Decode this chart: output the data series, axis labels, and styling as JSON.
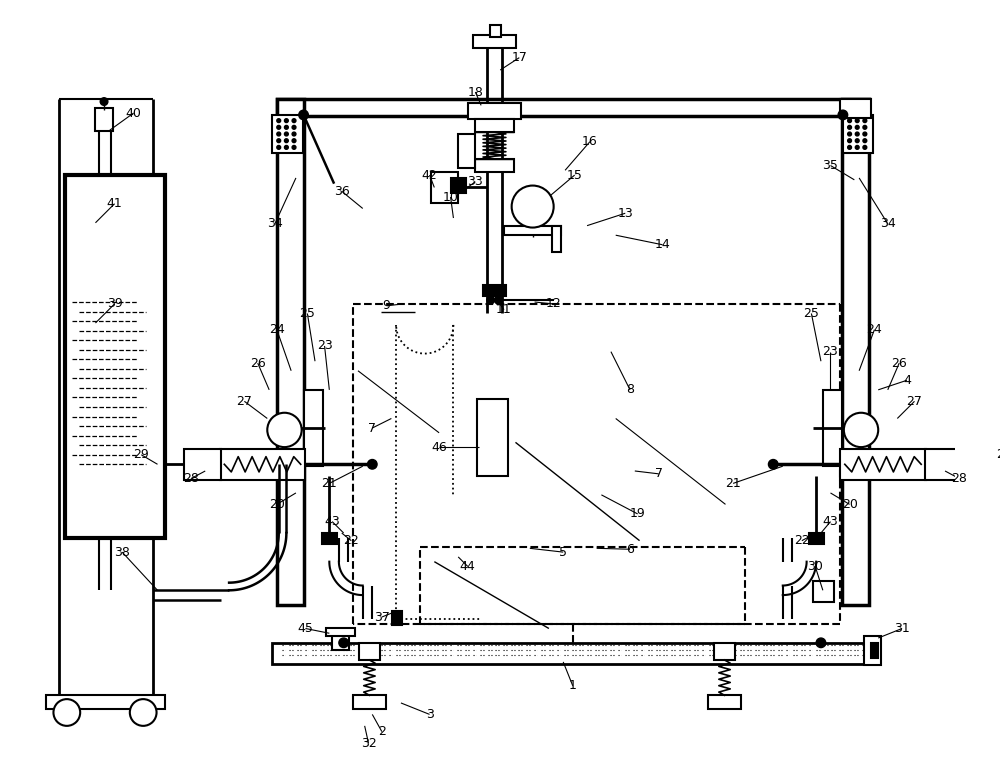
{
  "bg_color": "#ffffff",
  "lc": "#000000",
  "figsize": [
    10.0,
    7.73
  ],
  "dpi": 100
}
